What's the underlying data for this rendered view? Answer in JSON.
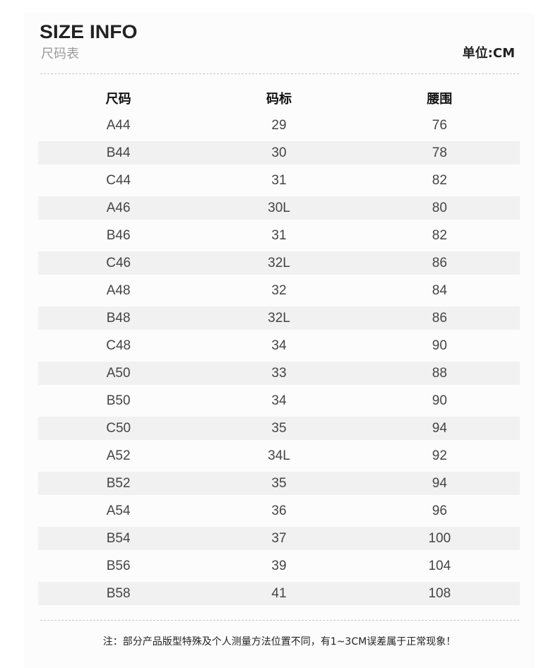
{
  "header": {
    "title": "SIZE INFO",
    "subtitle": "尺码表",
    "unit": "单位:CM"
  },
  "table": {
    "columns": [
      "尺码",
      "码标",
      "腰围"
    ],
    "rows": [
      [
        "A44",
        "29",
        "76"
      ],
      [
        "B44",
        "30",
        "78"
      ],
      [
        "C44",
        "31",
        "82"
      ],
      [
        "A46",
        "30L",
        "80"
      ],
      [
        "B46",
        "31",
        "82"
      ],
      [
        "C46",
        "32L",
        "86"
      ],
      [
        "A48",
        "32",
        "84"
      ],
      [
        "B48",
        "32L",
        "86"
      ],
      [
        "C48",
        "34",
        "90"
      ],
      [
        "A50",
        "33",
        "88"
      ],
      [
        "B50",
        "34",
        "90"
      ],
      [
        "C50",
        "35",
        "94"
      ],
      [
        "A52",
        "34L",
        "92"
      ],
      [
        "B52",
        "35",
        "94"
      ],
      [
        "A54",
        "36",
        "96"
      ],
      [
        "B54",
        "37",
        "100"
      ],
      [
        "B56",
        "39",
        "104"
      ],
      [
        "B58",
        "41",
        "108"
      ]
    ]
  },
  "footer": {
    "note": "注：部分产品版型特殊及个人测量方法位置不同，有1~3CM误差属于正常现象！"
  }
}
